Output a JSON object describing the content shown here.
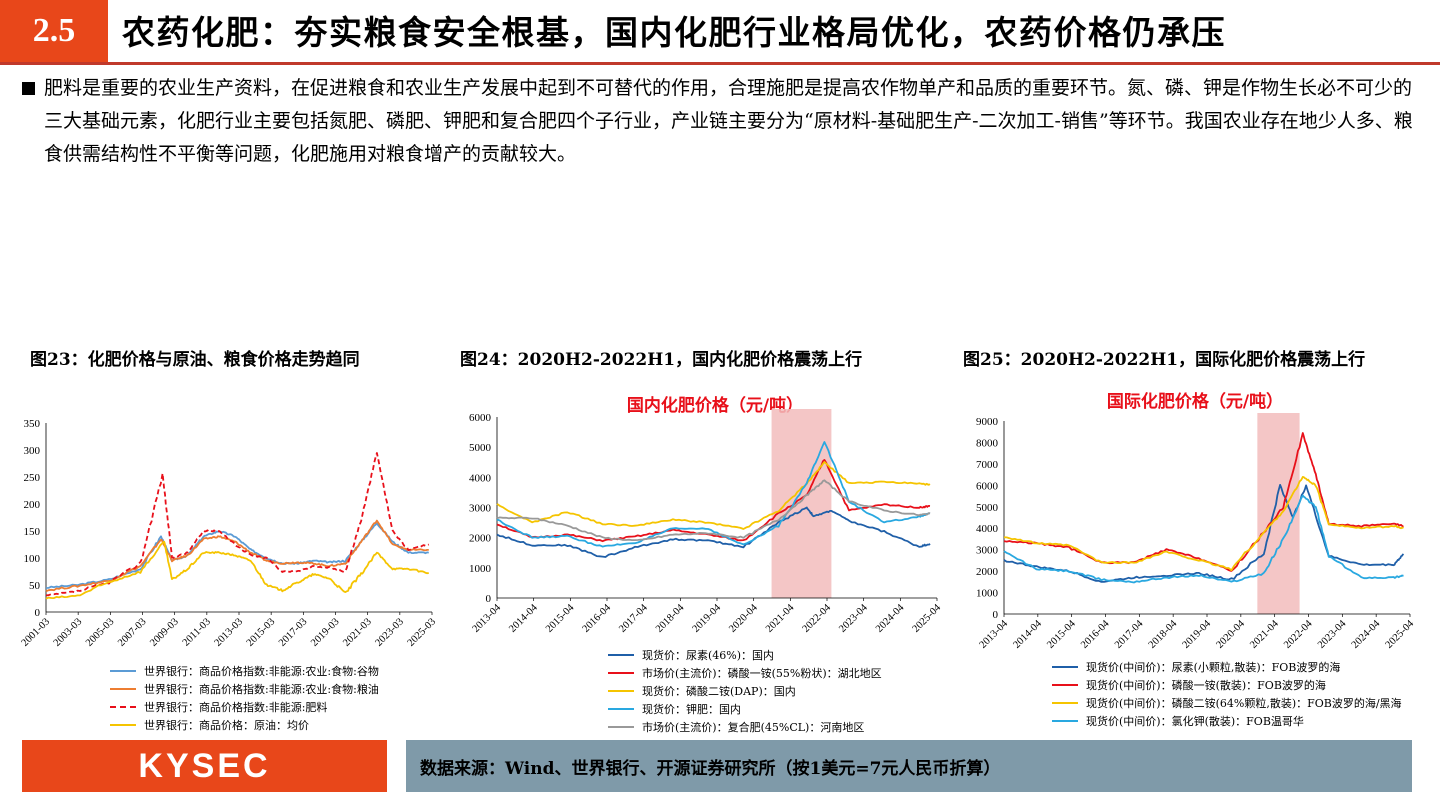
{
  "header": {
    "section": "2.5",
    "title": "农药化肥：夯实粮食安全根基，国内化肥行业格局优化，农药价格仍承压"
  },
  "paragraph": "肥料是重要的农业生产资料，在促进粮食和农业生产发展中起到不可替代的作用，合理施肥是提高农作物单产和品质的重要环节。氮、磷、钾是作物生长必不可少的三大基础元素，化肥行业主要包括氮肥、磷肥、钾肥和复合肥四个子行业，产业链主要分为“原材料-基础肥生产-二次加工-销售”等环节。我国农业存在地少人多、粮食供需结构性不平衡等问题，化肥施用对粮食增产的贡献较大。",
  "footer": {
    "logo": "KYSEC",
    "source": "数据来源：Wind、世界银行、开源证券研究所（按1美元=7元人民币折算）"
  },
  "chart_data": [
    {
      "type": "line",
      "figure_title": "图23：化肥价格与原油、粮食价格走势趋同",
      "title": "",
      "x_ticks": [
        "2001-03",
        "2003-03",
        "2005-03",
        "2007-03",
        "2009-03",
        "2011-03",
        "2013-03",
        "2015-03",
        "2017-03",
        "2019-03",
        "2021-03",
        "2023-03",
        "2025-03"
      ],
      "xlim": [
        2001.0,
        2025.5
      ],
      "ylim": [
        0,
        350
      ],
      "y_ticks": [
        0,
        50,
        100,
        150,
        200,
        250,
        300,
        350
      ],
      "series": [
        {
          "name": "世界银行：商品价格指数:非能源:农业:食物:谷物",
          "color": "#5b9bd5",
          "dash": false,
          "points": [
            [
              2001,
              45
            ],
            [
              2003,
              50
            ],
            [
              2005,
              60
            ],
            [
              2007,
              80
            ],
            [
              2008.3,
              140
            ],
            [
              2009,
              95
            ],
            [
              2010,
              105
            ],
            [
              2011,
              140
            ],
            [
              2012,
              150
            ],
            [
              2013,
              140
            ],
            [
              2014,
              115
            ],
            [
              2015,
              100
            ],
            [
              2016,
              90
            ],
            [
              2017,
              90
            ],
            [
              2018,
              95
            ],
            [
              2019,
              92
            ],
            [
              2020,
              95
            ],
            [
              2021,
              130
            ],
            [
              2022,
              165
            ],
            [
              2023,
              130
            ],
            [
              2024,
              110
            ],
            [
              2025.3,
              110
            ]
          ]
        },
        {
          "name": "世界银行：商品价格指数:非能源:农业:食物:粮油",
          "color": "#ed7d31",
          "dash": false,
          "points": [
            [
              2001,
              40
            ],
            [
              2003,
              48
            ],
            [
              2005,
              58
            ],
            [
              2007,
              85
            ],
            [
              2008.3,
              135
            ],
            [
              2009,
              95
            ],
            [
              2010,
              105
            ],
            [
              2011,
              135
            ],
            [
              2012,
              140
            ],
            [
              2013,
              130
            ],
            [
              2014,
              110
            ],
            [
              2015,
              95
            ],
            [
              2016,
              90
            ],
            [
              2017,
              92
            ],
            [
              2018,
              90
            ],
            [
              2019,
              85
            ],
            [
              2020,
              90
            ],
            [
              2021,
              130
            ],
            [
              2022,
              170
            ],
            [
              2023,
              125
            ],
            [
              2024,
              115
            ],
            [
              2025.3,
              115
            ]
          ]
        },
        {
          "name": "世界银行：商品价格指数:非能源:肥料",
          "color": "#e8101a",
          "dash": true,
          "points": [
            [
              2001,
              30
            ],
            [
              2003,
              38
            ],
            [
              2005,
              55
            ],
            [
              2007,
              90
            ],
            [
              2008.4,
              255
            ],
            [
              2009,
              100
            ],
            [
              2010,
              110
            ],
            [
              2011,
              150
            ],
            [
              2012,
              150
            ],
            [
              2013,
              125
            ],
            [
              2014,
              105
            ],
            [
              2015,
              100
            ],
            [
              2016,
              75
            ],
            [
              2017,
              75
            ],
            [
              2018,
              85
            ],
            [
              2019,
              82
            ],
            [
              2020,
              75
            ],
            [
              2021,
              170
            ],
            [
              2022,
              295
            ],
            [
              2023,
              150
            ],
            [
              2024,
              115
            ],
            [
              2025.3,
              125
            ]
          ]
        },
        {
          "name": "世界银行：商品价格：原油：均价",
          "color": "#f5c400",
          "dash": false,
          "points": [
            [
              2001,
              25
            ],
            [
              2003,
              30
            ],
            [
              2005,
              55
            ],
            [
              2007,
              75
            ],
            [
              2008.5,
              130
            ],
            [
              2009,
              60
            ],
            [
              2010,
              80
            ],
            [
              2011,
              110
            ],
            [
              2012,
              110
            ],
            [
              2013,
              105
            ],
            [
              2014,
              95
            ],
            [
              2015,
              50
            ],
            [
              2016,
              40
            ],
            [
              2017,
              55
            ],
            [
              2018,
              70
            ],
            [
              2019,
              62
            ],
            [
              2020,
              35
            ],
            [
              2021,
              70
            ],
            [
              2022,
              110
            ],
            [
              2023,
              80
            ],
            [
              2024,
              80
            ],
            [
              2025.3,
              72
            ]
          ]
        }
      ]
    },
    {
      "type": "line",
      "figure_title": "图24：2020H2-2022H1，国内化肥价格震荡上行",
      "title": "国内化肥价格（元/吨）",
      "x_ticks": [
        "2013-04",
        "2014-04",
        "2015-04",
        "2016-04",
        "2017-04",
        "2018-04",
        "2019-04",
        "2020-04",
        "2021-04",
        "2022-04",
        "2023-04",
        "2024-04",
        "2025-04"
      ],
      "xlim": [
        2013.0,
        2025.5
      ],
      "ylim": [
        0,
        6000
      ],
      "y_ticks": [
        0,
        1000,
        2000,
        3000,
        4000,
        5000,
        6000
      ],
      "shaded": [
        2020.8,
        2022.5
      ],
      "series": [
        {
          "name": "现货价：尿素(46%)：国内",
          "color": "#1f5fa8",
          "dash": false,
          "points": [
            [
              2013,
              2100
            ],
            [
              2014,
              1750
            ],
            [
              2015,
              1750
            ],
            [
              2016,
              1350
            ],
            [
              2017,
              1700
            ],
            [
              2018,
              1950
            ],
            [
              2019,
              1900
            ],
            [
              2020,
              1700
            ],
            [
              2021,
              2500
            ],
            [
              2021.8,
              3000
            ],
            [
              2022,
              2700
            ],
            [
              2022.5,
              2900
            ],
            [
              2023,
              2550
            ],
            [
              2024,
              2200
            ],
            [
              2025,
              1700
            ],
            [
              2025.3,
              1800
            ]
          ]
        },
        {
          "name": "市场价(主流价)：磷酸一铵(55%粉状)：湖北地区",
          "color": "#e8101a",
          "dash": false,
          "points": [
            [
              2013,
              2450
            ],
            [
              2014,
              2000
            ],
            [
              2015,
              2100
            ],
            [
              2016,
              1900
            ],
            [
              2017,
              2050
            ],
            [
              2018,
              2250
            ],
            [
              2019,
              2100
            ],
            [
              2020,
              1900
            ],
            [
              2021,
              2800
            ],
            [
              2021.8,
              3400
            ],
            [
              2022.3,
              4600
            ],
            [
              2023,
              2900
            ],
            [
              2024,
              3100
            ],
            [
              2025,
              3000
            ],
            [
              2025.3,
              3050
            ]
          ]
        },
        {
          "name": "现货价：磷酸二铵(DAP)：国内",
          "color": "#f5c400",
          "dash": false,
          "points": [
            [
              2013,
              3100
            ],
            [
              2014,
              2500
            ],
            [
              2015,
              2850
            ],
            [
              2016,
              2450
            ],
            [
              2017,
              2400
            ],
            [
              2018,
              2600
            ],
            [
              2019,
              2500
            ],
            [
              2020,
              2300
            ],
            [
              2021,
              2900
            ],
            [
              2021.8,
              3800
            ],
            [
              2022.3,
              4500
            ],
            [
              2023,
              3800
            ],
            [
              2024,
              3850
            ],
            [
              2025,
              3800
            ],
            [
              2025.3,
              3750
            ]
          ]
        },
        {
          "name": "现货价：钾肥：国内",
          "color": "#29a8e0",
          "dash": false,
          "points": [
            [
              2013,
              2600
            ],
            [
              2014,
              2000
            ],
            [
              2015,
              2050
            ],
            [
              2016,
              1700
            ],
            [
              2017,
              1850
            ],
            [
              2018,
              2300
            ],
            [
              2019,
              2300
            ],
            [
              2020,
              1750
            ],
            [
              2021,
              2400
            ],
            [
              2021.8,
              3800
            ],
            [
              2022.3,
              5200
            ],
            [
              2023,
              3200
            ],
            [
              2024,
              2500
            ],
            [
              2025,
              2700
            ],
            [
              2025.3,
              2800
            ]
          ]
        },
        {
          "name": "市场价(主流价)：复合肥(45%CL)：河南地区",
          "color": "#999999",
          "dash": false,
          "points": [
            [
              2013,
              2650
            ],
            [
              2014,
              2650
            ],
            [
              2015,
              2400
            ],
            [
              2016,
              2000
            ],
            [
              2017,
              1900
            ],
            [
              2018,
              2100
            ],
            [
              2019,
              2150
            ],
            [
              2020,
              2000
            ],
            [
              2021,
              2600
            ],
            [
              2021.8,
              3400
            ],
            [
              2022.3,
              3900
            ],
            [
              2023,
              3200
            ],
            [
              2024,
              2900
            ],
            [
              2025,
              2750
            ],
            [
              2025.3,
              2800
            ]
          ]
        }
      ]
    },
    {
      "type": "line",
      "figure_title": "图25：2020H2-2022H1，国际化肥价格震荡上行",
      "title": "国际化肥价格（元/吨）",
      "x_ticks": [
        "2013-04",
        "2014-04",
        "2015-04",
        "2016-04",
        "2017-04",
        "2018-04",
        "2019-04",
        "2020-04",
        "2021-04",
        "2022-04",
        "2023-04",
        "2024-04",
        "2025-04"
      ],
      "xlim": [
        2013.0,
        2025.5
      ],
      "ylim": [
        0,
        9000
      ],
      "y_ticks": [
        0,
        1000,
        2000,
        3000,
        4000,
        5000,
        6000,
        7000,
        8000,
        9000
      ],
      "shaded": [
        2020.8,
        2022.1
      ],
      "series": [
        {
          "name": "现货价(中间价)：尿素(小颗粒,散装)：FOB波罗的海",
          "color": "#1f5fa8",
          "dash": false,
          "points": [
            [
              2013,
              2500
            ],
            [
              2014,
              2200
            ],
            [
              2015,
              2000
            ],
            [
              2016,
              1500
            ],
            [
              2017,
              1700
            ],
            [
              2018,
              1800
            ],
            [
              2019,
              1900
            ],
            [
              2020,
              1600
            ],
            [
              2021,
              2800
            ],
            [
              2021.5,
              6000
            ],
            [
              2021.9,
              4500
            ],
            [
              2022.3,
              6000
            ],
            [
              2023,
              2700
            ],
            [
              2024,
              2300
            ],
            [
              2025,
              2300
            ],
            [
              2025.3,
              2800
            ]
          ]
        },
        {
          "name": "现货价(中间价)：磷酸一铵(散装)：FOB波罗的海",
          "color": "#e8101a",
          "dash": false,
          "points": [
            [
              2013,
              3400
            ],
            [
              2014,
              3300
            ],
            [
              2015,
              3100
            ],
            [
              2016,
              2400
            ],
            [
              2017,
              2400
            ],
            [
              2018,
              3000
            ],
            [
              2019,
              2600
            ],
            [
              2020,
              2000
            ],
            [
              2021,
              3800
            ],
            [
              2021.6,
              5000
            ],
            [
              2022.2,
              8400
            ],
            [
              2022.6,
              6500
            ],
            [
              2023,
              4200
            ],
            [
              2024,
              4100
            ],
            [
              2025,
              4200
            ],
            [
              2025.3,
              4100
            ]
          ]
        },
        {
          "name": "现货价(中间价)：磷酸二铵(64%颗粒,散装)：FOB波罗的海/黑海",
          "color": "#f5c400",
          "dash": false,
          "points": [
            [
              2013,
              3600
            ],
            [
              2014,
              3300
            ],
            [
              2015,
              3200
            ],
            [
              2016,
              2400
            ],
            [
              2017,
              2400
            ],
            [
              2018,
              2900
            ],
            [
              2019,
              2500
            ],
            [
              2020,
              2100
            ],
            [
              2021,
              3800
            ],
            [
              2021.6,
              4800
            ],
            [
              2022.2,
              6400
            ],
            [
              2022.6,
              6000
            ],
            [
              2023,
              4200
            ],
            [
              2024,
              4000
            ],
            [
              2025,
              4100
            ],
            [
              2025.3,
              4000
            ]
          ]
        },
        {
          "name": "现货价(中间价)：氯化钾(散装)：FOB温哥华",
          "color": "#29a8e0",
          "dash": false,
          "points": [
            [
              2013,
              2900
            ],
            [
              2014,
              2100
            ],
            [
              2015,
              2000
            ],
            [
              2016,
              1600
            ],
            [
              2017,
              1500
            ],
            [
              2018,
              1700
            ],
            [
              2019,
              1800
            ],
            [
              2020,
              1500
            ],
            [
              2021,
              1900
            ],
            [
              2021.6,
              3500
            ],
            [
              2022.2,
              5500
            ],
            [
              2022.6,
              5000
            ],
            [
              2023,
              2700
            ],
            [
              2024,
              1700
            ],
            [
              2025,
              1700
            ],
            [
              2025.3,
              1800
            ]
          ]
        }
      ]
    }
  ]
}
